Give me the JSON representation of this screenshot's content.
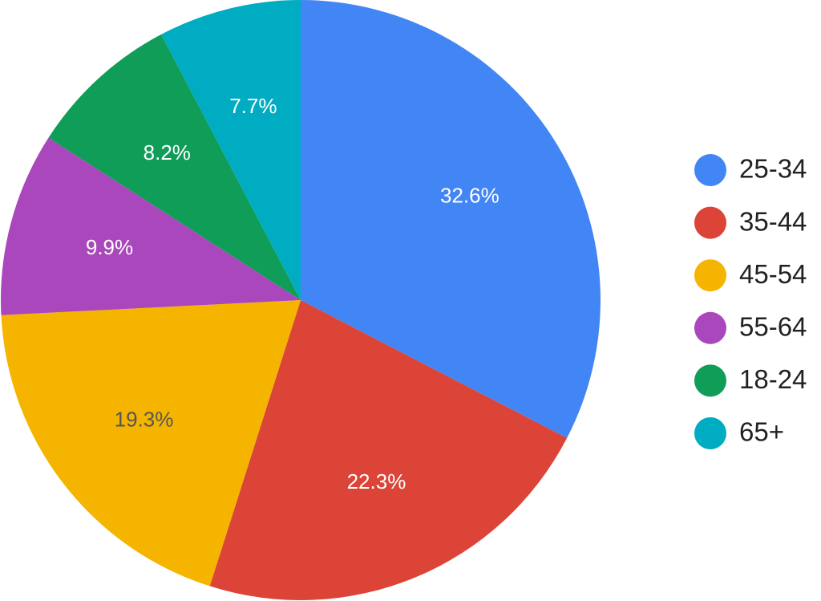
{
  "chart_data": {
    "type": "pie",
    "title": "",
    "slices": [
      {
        "label": "25-34",
        "value": 32.6,
        "display": "32.6%",
        "color": "#4285F4",
        "label_color": "#ffffff"
      },
      {
        "label": "35-44",
        "value": 22.3,
        "display": "22.3%",
        "color": "#DB4437",
        "label_color": "#ffffff"
      },
      {
        "label": "45-54",
        "value": 19.3,
        "display": "19.3%",
        "color": "#F4B400",
        "label_color": "#555555"
      },
      {
        "label": "55-64",
        "value": 9.9,
        "display": "9.9%",
        "color": "#AB47BC",
        "label_color": "#ffffff"
      },
      {
        "label": "18-24",
        "value": 8.2,
        "display": "8.2%",
        "color": "#0F9D58",
        "label_color": "#ffffff"
      },
      {
        "label": "65+",
        "value": 7.7,
        "display": "7.7%",
        "color": "#00ACC1",
        "label_color": "#ffffff"
      }
    ],
    "legend": {
      "position": "right"
    },
    "start_angle_deg": 0,
    "direction": "clockwise"
  }
}
